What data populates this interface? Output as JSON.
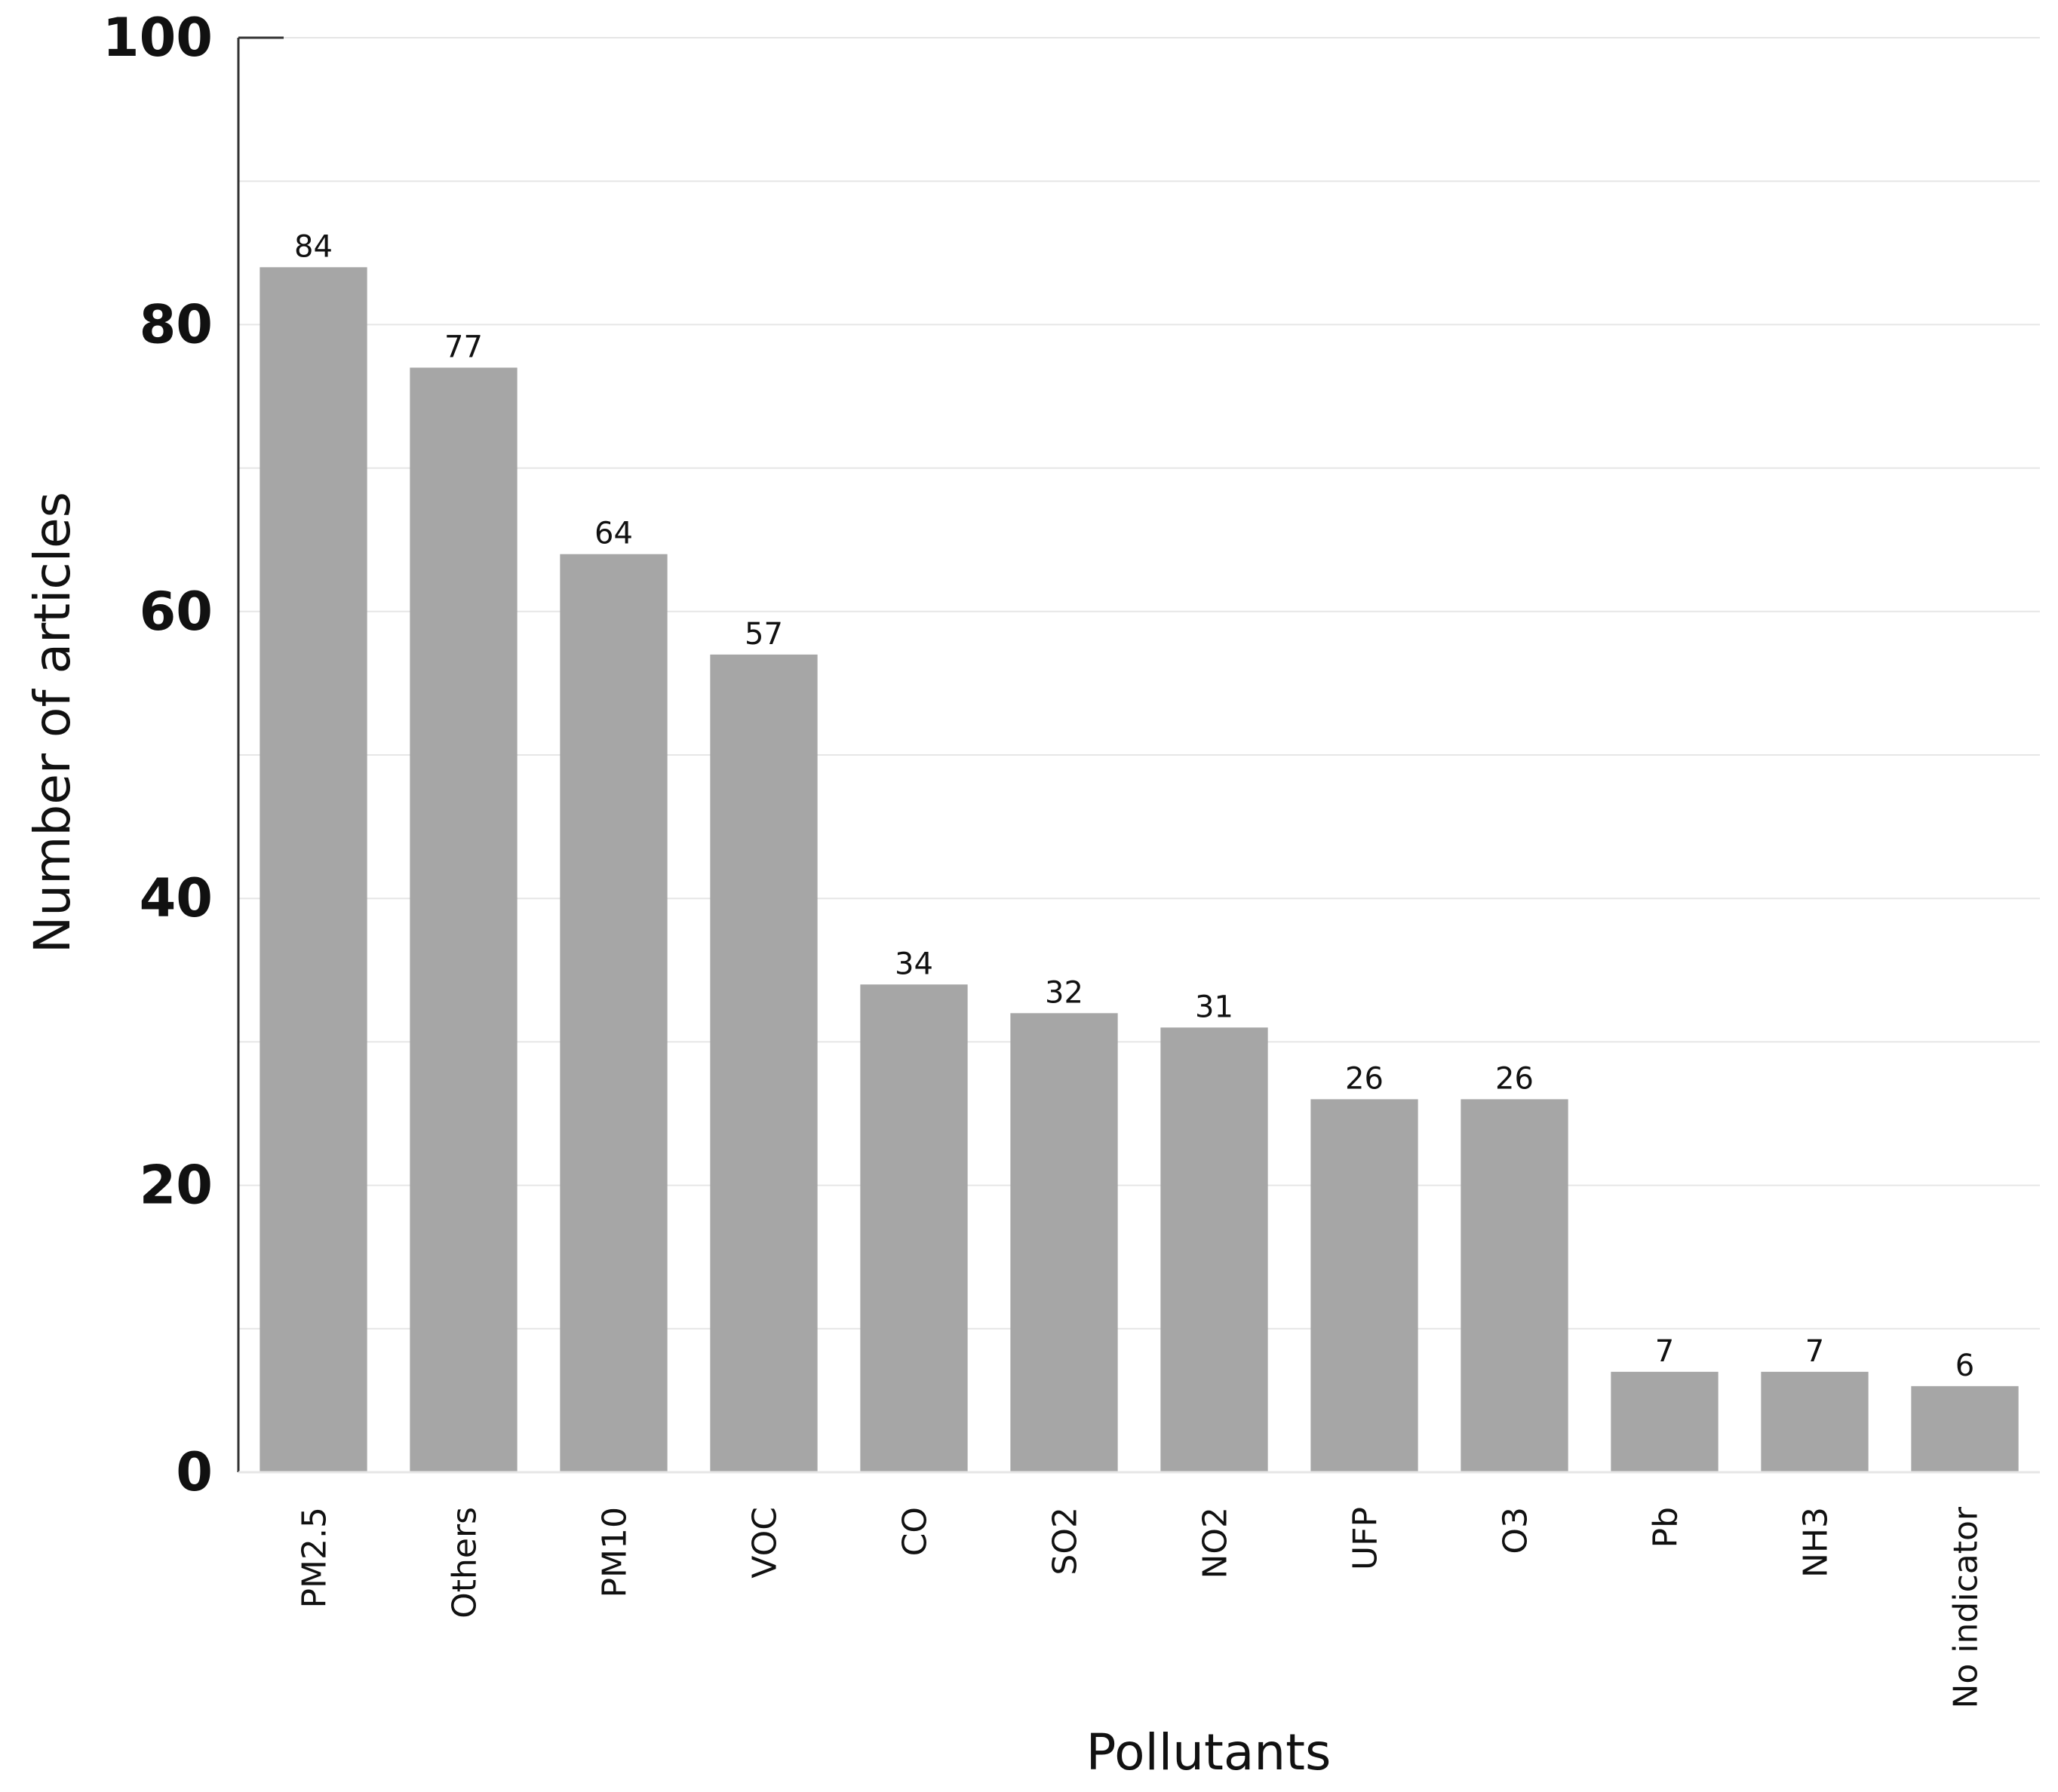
{
  "chart_data": {
    "type": "bar",
    "title": "",
    "xlabel": "Pollutants",
    "ylabel": "Number of articles",
    "categories": [
      "PM2.5",
      "Others",
      "PM10",
      "VOC",
      "CO",
      "SO2",
      "NO2",
      "UFP",
      "O3",
      "Pb",
      "NH3",
      "No indicator"
    ],
    "values": [
      84,
      77,
      64,
      57,
      34,
      32,
      31,
      26,
      26,
      7,
      7,
      6
    ],
    "data_labels": [
      "84",
      "77",
      "64",
      "57",
      "34",
      "32",
      "31",
      "26",
      "26",
      "7",
      "7",
      "6"
    ],
    "ylim": [
      0,
      100
    ],
    "yticks": [
      0,
      20,
      40,
      60,
      80,
      100
    ],
    "ytick_labels": [
      "0",
      "20",
      "40",
      "60",
      "80",
      "100"
    ],
    "grid": true,
    "legend": "none",
    "colors": {
      "bar": "#a6a6a6",
      "grid": "#e6e6e6",
      "axis": "#333333",
      "text": "#111111"
    }
  }
}
